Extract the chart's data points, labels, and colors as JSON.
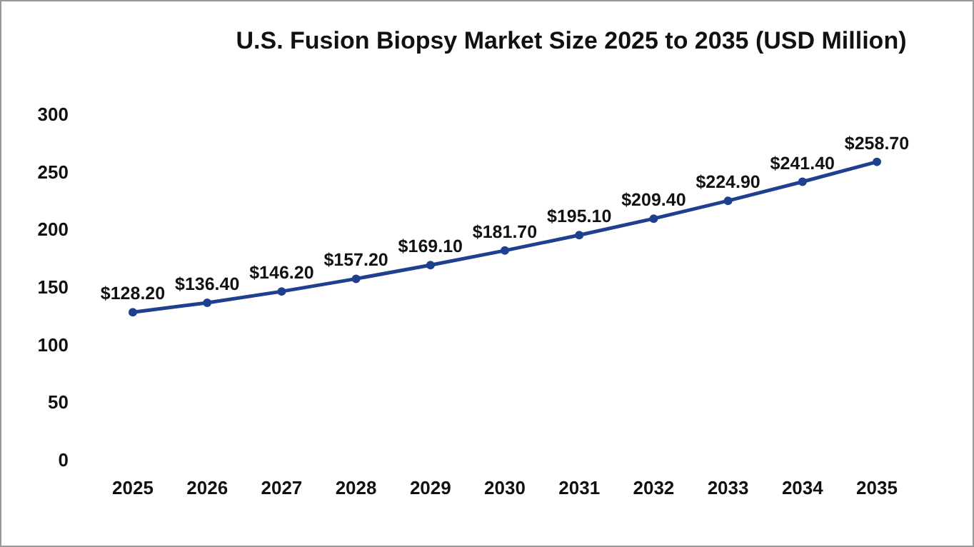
{
  "chart_data": {
    "type": "line",
    "title": "U.S. Fusion Biopsy Market Size 2025 to 2035 (USD Million)",
    "categories": [
      "2025",
      "2026",
      "2027",
      "2028",
      "2029",
      "2030",
      "2031",
      "2032",
      "2033",
      "2034",
      "2035"
    ],
    "series": [
      {
        "color": "#1f3f8f",
        "values": [
          128.2,
          136.4,
          146.2,
          157.2,
          169.1,
          181.7,
          195.1,
          209.4,
          224.9,
          241.4,
          258.7
        ],
        "value_labels": [
          "$128.20",
          "$136.40",
          "$146.20",
          "$157.20",
          "$169.10",
          "$181.70",
          "$195.10",
          "$209.40",
          "$224.90",
          "$241.40",
          "$258.70"
        ]
      }
    ],
    "ylim": [
      0,
      300
    ],
    "yticks": [
      0,
      50,
      100,
      150,
      200,
      250,
      300
    ],
    "marker": "circle",
    "line_style": "solid"
  }
}
